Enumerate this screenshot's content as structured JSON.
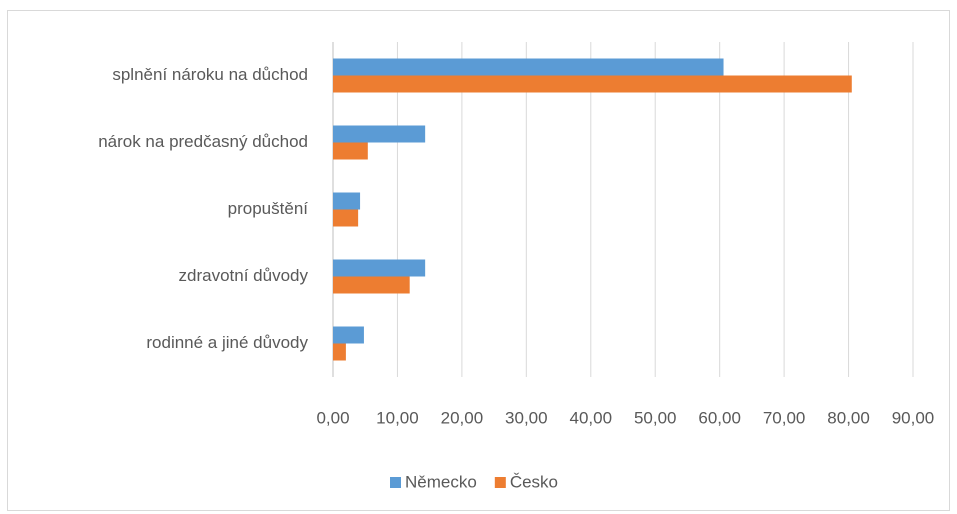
{
  "chart_data": {
    "type": "bar",
    "orientation": "horizontal",
    "categories": [
      "splnění nároku na důchod",
      "nárok na predčasný důchod",
      "propuštění",
      "zdravotní důvody",
      "rodinné a jiné důvody"
    ],
    "series": [
      {
        "name": "Německo",
        "color": "#5b9bd5",
        "values": [
          60.6,
          14.3,
          4.2,
          14.3,
          4.8
        ]
      },
      {
        "name": "Česko",
        "color": "#ed7d31",
        "values": [
          80.5,
          5.4,
          3.9,
          11.9,
          2.0
        ]
      }
    ],
    "xlim": [
      0,
      90
    ],
    "xticks": [
      {
        "value": 0,
        "label": "0,00"
      },
      {
        "value": 10,
        "label": "10,00"
      },
      {
        "value": 20,
        "label": "20,00"
      },
      {
        "value": 30,
        "label": "30,00"
      },
      {
        "value": 40,
        "label": "40,00"
      },
      {
        "value": 50,
        "label": "50,00"
      },
      {
        "value": 60,
        "label": "60,00"
      },
      {
        "value": 70,
        "label": "70,00"
      },
      {
        "value": 80,
        "label": "80,00"
      },
      {
        "value": 90,
        "label": "90,00"
      }
    ],
    "grid": true,
    "legend": "bottom"
  }
}
